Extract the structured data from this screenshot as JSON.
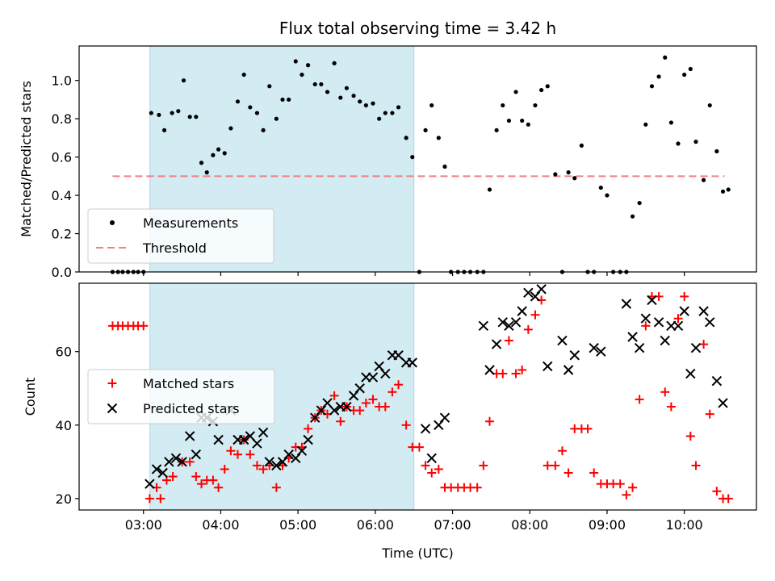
{
  "chart_data": [
    {
      "type": "scatter",
      "title": "Flux total observing time = 3.42 h",
      "xlabel": "",
      "ylabel": "Matched/Predicted stars",
      "xlim": [
        2.1667,
        10.9333
      ],
      "ylim": [
        0,
        1.18
      ],
      "yticks": [
        0.0,
        0.2,
        0.4,
        0.6,
        0.8,
        1.0
      ],
      "ytick_labels": [
        "0.0",
        "0.2",
        "0.4",
        "0.6",
        "0.8",
        "1.0"
      ],
      "xticks": [
        3,
        4,
        5,
        6,
        7,
        8,
        9,
        10
      ],
      "shaded_span": [
        3.083,
        6.5
      ],
      "shade_color": "#d3ebf2",
      "legend_position": "lower-left",
      "legend": [
        {
          "label": "Measurements",
          "marker": "dot",
          "color": "#000000"
        },
        {
          "label": "Threshold",
          "marker": "dashed-line",
          "color": "#f08080"
        }
      ],
      "threshold": {
        "value": 0.5,
        "x": [
          2.6,
          10.52
        ],
        "color": "#f08080"
      },
      "series": [
        {
          "name": "Measurements",
          "color": "#000000",
          "x": [
            2.6,
            2.67,
            2.73,
            2.8,
            2.87,
            2.93,
            3.0,
            3.1,
            3.2,
            3.27,
            3.37,
            3.45,
            3.52,
            3.6,
            3.68,
            3.75,
            3.82,
            3.9,
            3.97,
            4.05,
            4.13,
            4.22,
            4.3,
            4.38,
            4.47,
            4.55,
            4.63,
            4.72,
            4.8,
            4.88,
            4.97,
            5.05,
            5.13,
            5.22,
            5.3,
            5.38,
            5.47,
            5.55,
            5.63,
            5.72,
            5.8,
            5.88,
            5.97,
            6.05,
            6.13,
            6.22,
            6.3,
            6.4,
            6.48,
            6.57,
            6.65,
            6.73,
            6.82,
            6.9,
            6.98,
            7.07,
            7.15,
            7.23,
            7.32,
            7.4,
            7.48,
            7.57,
            7.65,
            7.73,
            7.82,
            7.9,
            7.98,
            8.07,
            8.15,
            8.23,
            8.33,
            8.42,
            8.5,
            8.58,
            8.67,
            8.75,
            8.83,
            8.92,
            9.0,
            9.08,
            9.17,
            9.25,
            9.33,
            9.42,
            9.5,
            9.58,
            9.67,
            9.75,
            9.83,
            9.92,
            10.0,
            10.08,
            10.15,
            10.25,
            10.33,
            10.42,
            10.5,
            10.57
          ],
          "y": [
            0,
            0,
            0,
            0,
            0,
            0,
            0,
            0.83,
            0.82,
            0.74,
            0.83,
            0.84,
            1.0,
            0.81,
            0.81,
            0.57,
            0.52,
            0.61,
            0.64,
            0.62,
            0.75,
            0.89,
            1.03,
            0.86,
            0.83,
            0.74,
            0.97,
            0.8,
            0.9,
            0.9,
            1.1,
            1.03,
            1.08,
            0.98,
            0.98,
            0.94,
            1.09,
            0.91,
            0.96,
            0.92,
            0.89,
            0.87,
            0.88,
            0.8,
            0.83,
            0.83,
            0.86,
            0.7,
            0.6,
            0,
            0.74,
            0.87,
            0.7,
            0.55,
            0,
            0,
            0,
            0,
            0,
            0,
            0.43,
            0.74,
            0.87,
            0.79,
            0.94,
            0.79,
            0.77,
            0.87,
            0.95,
            0.97,
            0.51,
            0,
            0.52,
            0.49,
            0.66,
            0,
            0,
            0.44,
            0.4,
            0,
            0,
            0,
            0.29,
            0.36,
            0.77,
            0.97,
            1.02,
            1.12,
            0.78,
            0.67,
            1.03,
            1.06,
            0.68,
            0.48,
            0.87,
            0.63,
            0.42,
            0.43
          ]
        }
      ]
    },
    {
      "type": "scatter",
      "title": "",
      "xlabel": "Time (UTC)",
      "ylabel": "Count",
      "xlim": [
        2.1667,
        10.9333
      ],
      "ylim": [
        16.9,
        78.6
      ],
      "yticks": [
        20,
        40,
        60
      ],
      "ytick_labels": [
        "20",
        "40",
        "60"
      ],
      "xticks": [
        3,
        4,
        5,
        6,
        7,
        8,
        9,
        10
      ],
      "xtick_labels": [
        "03:00",
        "04:00",
        "05:00",
        "06:00",
        "07:00",
        "08:00",
        "09:00",
        "10:00"
      ],
      "shaded_span": [
        3.083,
        6.5
      ],
      "shade_color": "#d3ebf2",
      "legend_position": "center-left",
      "legend": [
        {
          "label": "Matched stars",
          "marker": "plus",
          "color": "#ff0000"
        },
        {
          "label": "Predicted stars",
          "marker": "x",
          "color": "#000000"
        }
      ],
      "series": [
        {
          "name": "Matched stars",
          "marker": "plus",
          "color": "#ff0000",
          "x": [
            2.6,
            2.67,
            2.73,
            2.8,
            2.87,
            2.93,
            3.0,
            3.08,
            3.17,
            3.22,
            3.3,
            3.38,
            3.5,
            3.6,
            3.68,
            3.75,
            3.82,
            3.9,
            3.97,
            4.05,
            4.13,
            4.22,
            4.3,
            4.38,
            4.47,
            4.55,
            4.63,
            4.72,
            4.8,
            4.88,
            4.97,
            5.05,
            5.13,
            5.22,
            5.3,
            5.38,
            5.47,
            5.55,
            5.63,
            5.72,
            5.8,
            5.88,
            5.97,
            6.05,
            6.13,
            6.22,
            6.3,
            6.4,
            6.48,
            6.57,
            6.65,
            6.73,
            6.82,
            6.9,
            6.98,
            7.07,
            7.15,
            7.23,
            7.32,
            7.4,
            7.48,
            7.57,
            7.65,
            7.73,
            7.82,
            7.9,
            7.98,
            8.07,
            8.15,
            8.23,
            8.33,
            8.42,
            8.5,
            8.58,
            8.67,
            8.75,
            8.83,
            8.92,
            9.0,
            9.08,
            9.17,
            9.25,
            9.33,
            9.42,
            9.5,
            9.58,
            9.67,
            9.75,
            9.83,
            9.92,
            10.0,
            10.08,
            10.15,
            10.25,
            10.33,
            10.42,
            10.5,
            10.57
          ],
          "y": [
            67,
            67,
            67,
            67,
            67,
            67,
            67,
            20,
            23,
            20,
            25,
            26,
            30,
            30,
            26,
            24,
            25,
            25,
            23,
            28,
            33,
            32,
            36,
            32,
            29,
            28,
            29,
            23,
            29,
            31,
            34,
            34,
            39,
            42,
            44,
            43,
            48,
            41,
            45,
            44,
            44,
            46,
            47,
            45,
            45,
            49,
            51,
            40,
            34,
            34,
            29,
            27,
            28,
            23,
            23,
            23,
            23,
            23,
            23,
            29,
            41,
            54,
            54,
            63,
            54,
            55,
            66,
            70,
            74,
            29,
            29,
            33,
            27,
            39,
            39,
            39,
            27,
            24,
            24,
            24,
            24,
            21,
            23,
            47,
            67,
            75,
            75,
            49,
            45,
            69,
            75,
            37,
            29,
            62,
            43,
            22,
            20,
            20
          ]
        },
        {
          "name": "Predicted stars",
          "marker": "x",
          "color": "#000000",
          "x": [
            3.08,
            3.17,
            3.25,
            3.33,
            3.42,
            3.5,
            3.6,
            3.68,
            3.75,
            3.82,
            3.9,
            3.97,
            4.13,
            4.22,
            4.3,
            4.38,
            4.47,
            4.55,
            4.63,
            4.72,
            4.8,
            4.88,
            4.97,
            5.05,
            5.13,
            5.22,
            5.3,
            5.38,
            5.47,
            5.55,
            5.63,
            5.72,
            5.8,
            5.88,
            5.97,
            6.05,
            6.13,
            6.22,
            6.3,
            6.4,
            6.48,
            6.65,
            6.73,
            6.82,
            6.9,
            7.4,
            7.48,
            7.57,
            7.65,
            7.73,
            7.82,
            7.9,
            7.98,
            8.07,
            8.15,
            8.23,
            8.42,
            8.5,
            8.58,
            8.83,
            8.92,
            9.25,
            9.33,
            9.42,
            9.5,
            9.58,
            9.67,
            9.75,
            9.83,
            9.92,
            10.0,
            10.08,
            10.15,
            10.25,
            10.33,
            10.42,
            10.5
          ],
          "y": [
            24,
            28,
            27,
            30,
            31,
            30,
            37,
            32,
            42,
            42,
            41,
            36,
            44,
            36,
            36,
            37,
            35,
            38,
            30,
            29,
            30,
            32,
            31,
            33,
            36,
            42,
            44,
            46,
            44,
            45,
            45,
            48,
            50,
            53,
            53,
            56,
            54,
            59,
            59,
            57,
            57,
            39,
            31,
            40,
            42,
            67,
            55,
            62,
            68,
            67,
            68,
            71,
            76,
            75,
            77,
            56,
            63,
            55,
            59,
            61,
            60,
            73,
            64,
            61,
            69,
            74,
            68,
            63,
            67,
            67,
            71,
            54,
            61,
            71,
            68,
            52,
            46
          ]
        }
      ]
    }
  ]
}
